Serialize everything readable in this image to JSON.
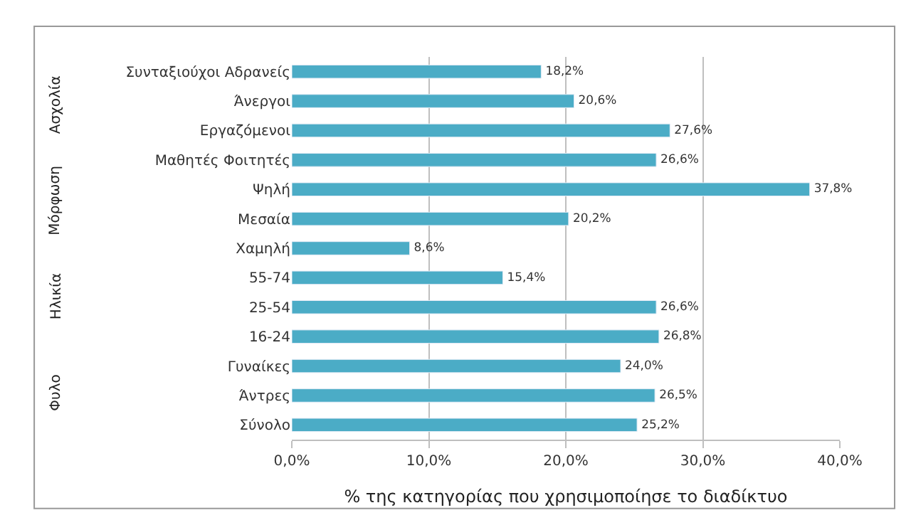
{
  "chart_data": {
    "type": "bar",
    "orientation": "horizontal",
    "xlabel": "% της κατηγορίας που χρησιμοποίησε το διαδίκτυο",
    "categories": [
      "Συνταξιούχοι Αδρανείς",
      "Άνεργοι",
      "Εργαζόμενοι",
      "Μαθητές Φοιτητές",
      "Ψηλή",
      "Μεσαία",
      "Χαμηλή",
      "55-74",
      "25-54",
      "16-24",
      "Γυναίκες",
      "Άντρες",
      "Σύνολο"
    ],
    "values": [
      18.2,
      20.6,
      27.6,
      26.6,
      37.8,
      20.2,
      8.6,
      15.4,
      26.6,
      26.8,
      24.0,
      26.5,
      25.2
    ],
    "value_labels": [
      "18,2%",
      "20,6%",
      "27,6%",
      "26,6%",
      "37,8%",
      "20,2%",
      "8,6%",
      "15,4%",
      "26,6%",
      "26,8%",
      "24,0%",
      "26,5%",
      "25,2%"
    ],
    "color": "#4bacc6",
    "xlim": [
      0,
      40
    ],
    "xticks": [
      {
        "value": 0,
        "label": "0,0%"
      },
      {
        "value": 10,
        "label": "10,0%"
      },
      {
        "value": 20,
        "label": "20,0%"
      },
      {
        "value": 30,
        "label": "30,0%"
      },
      {
        "value": 40,
        "label": "40,0%"
      }
    ],
    "grid": "x",
    "annotations": [
      "Ασχολία",
      "Μόρφωση",
      "Ηλικία",
      "Φυλο"
    ]
  }
}
